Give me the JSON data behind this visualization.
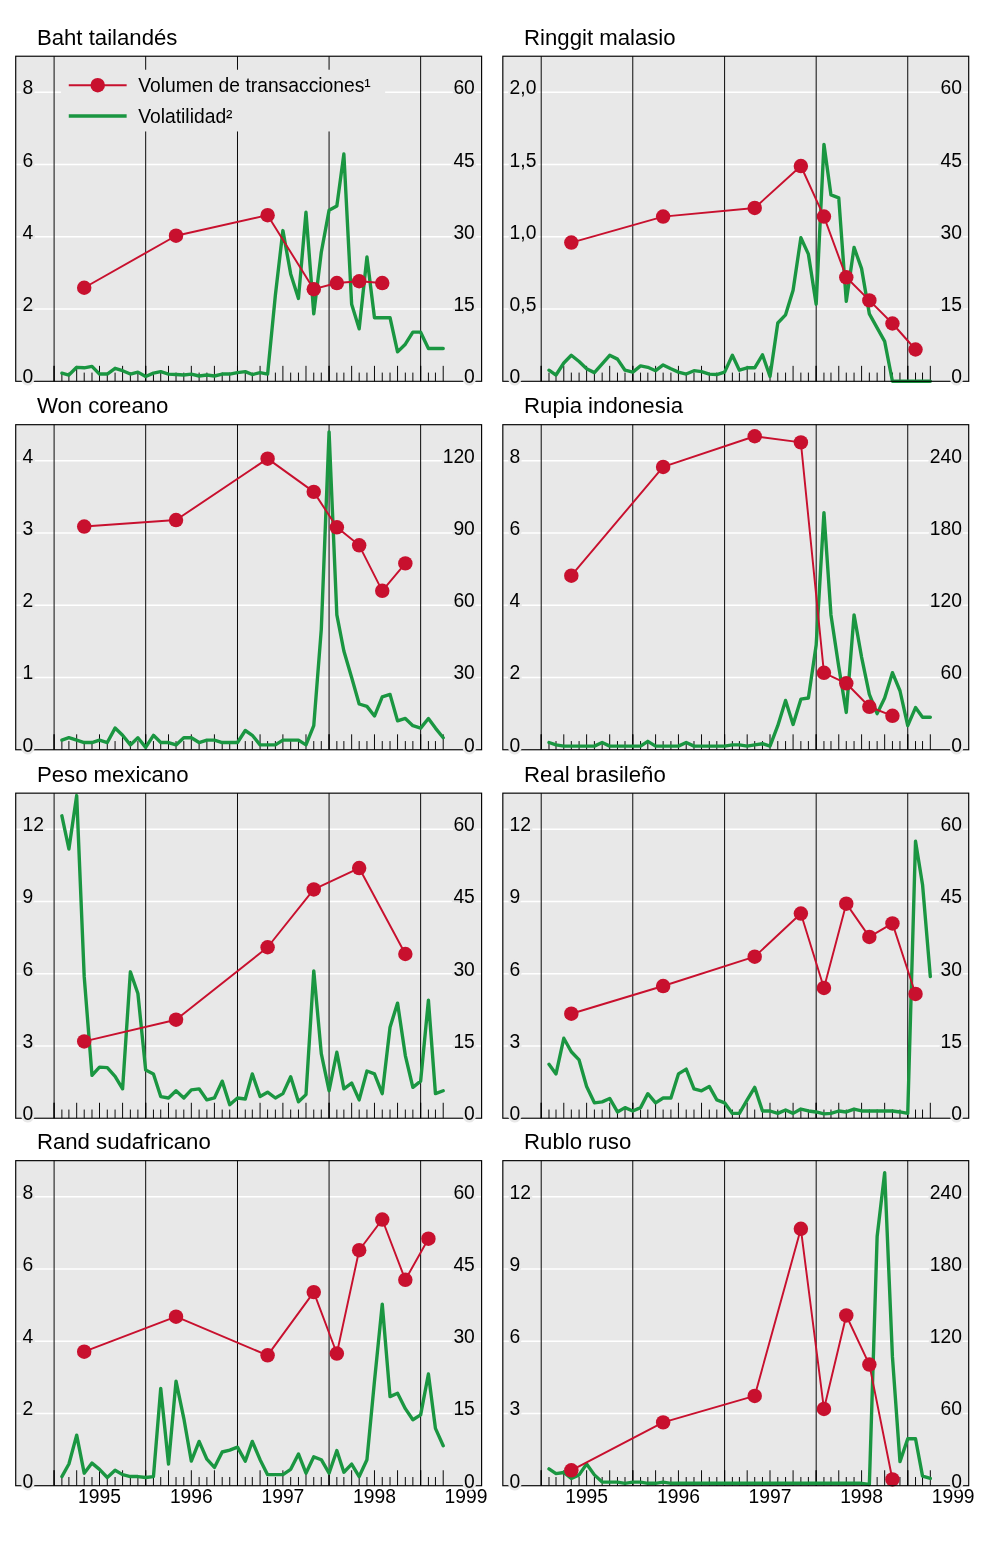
{
  "chart_data": [
    {
      "type": "line",
      "title": "Baht tailandés",
      "xlim": [
        "1994-08",
        "1999-09"
      ],
      "xticks": [
        {
          "value": "1995",
          "label": null
        },
        {
          "value": "1996",
          "label": null
        },
        {
          "value": "1997",
          "label": null
        },
        {
          "value": "1998",
          "label": null
        },
        {
          "value": "1999",
          "label": null
        }
      ],
      "tick_labels": "y",
      "ylim": [
        0,
        9
      ],
      "yticks": [
        0,
        2,
        4,
        6,
        8
      ],
      "y2lim": [
        0,
        67.5
      ],
      "y2ticks": [
        0,
        15,
        30,
        45,
        60
      ],
      "grid": "y",
      "legend": "top left",
      "ref_lines": [
        {
          "axis": "x",
          "value": "1995",
          "color": "#000000"
        },
        {
          "axis": "x",
          "value": "1996",
          "color": "#000000"
        },
        {
          "axis": "x",
          "value": "1997",
          "color": "#000000"
        },
        {
          "axis": "x",
          "value": "1998",
          "color": "#000000"
        },
        {
          "axis": "x",
          "value": "1999",
          "color": "#000000"
        }
      ],
      "series": [
        {
          "name": "Volumen de transacciones¹",
          "color": "#c8102e",
          "marker": "circle",
          "x": [
            "1995-05",
            "1996-05",
            "1997-05",
            "1997-11",
            "1998-02",
            "1998-05",
            "1998-08"
          ],
          "values": [
            2.59,
            4.03,
            4.6,
            2.55,
            2.72,
            2.77,
            2.72
          ]
        },
        {
          "name": "Volatilidad²",
          "color": "#1a9641",
          "marker": "none",
          "axis": "y2",
          "x": [
            "1995-02",
            "1995-03",
            "1995-04",
            "1995-05",
            "1995-06",
            "1995-07",
            "1995-08",
            "1995-09",
            "1995-10",
            "1995-11",
            "1995-12",
            "1996-01",
            "1996-02",
            "1996-03",
            "1996-04",
            "1996-05",
            "1996-06",
            "1996-07",
            "1996-08",
            "1996-09",
            "1996-10",
            "1996-11",
            "1996-12",
            "1997-01",
            "1997-02",
            "1997-03",
            "1997-04",
            "1997-05",
            "1997-06",
            "1997-07",
            "1997-08",
            "1997-09",
            "1997-10",
            "1997-11",
            "1997-12",
            "1998-01",
            "1998-02",
            "1998-03",
            "1998-04",
            "1998-05",
            "1998-06",
            "1998-07",
            "1998-08",
            "1998-09",
            "1998-10",
            "1998-11",
            "1998-12",
            "1999-01",
            "1999-02",
            "1999-03",
            "1999-04"
          ],
          "values": [
            1.7,
            1.3,
            2.9,
            2.8,
            3.1,
            1.5,
            1.5,
            2.7,
            2.2,
            1.5,
            1.9,
            1.0,
            1.7,
            2.0,
            1.5,
            1.4,
            1.3,
            1.5,
            1.1,
            1.3,
            1.1,
            1.5,
            1.5,
            1.8,
            2.0,
            1.4,
            1.8,
            1.5,
            17.9,
            31.3,
            22.3,
            17.2,
            35.1,
            14.0,
            26.8,
            35.5,
            36.4,
            47.2,
            16.0,
            10.9,
            25.8,
            13.2,
            13.2,
            13.2,
            6.1,
            7.7,
            10.2,
            10.2,
            6.8,
            6.8,
            6.8
          ]
        }
      ]
    },
    {
      "type": "line",
      "title": "Ringgit malasio",
      "xlim": [
        "1994-08",
        "1999-09"
      ],
      "xticks": [
        {
          "value": "1995",
          "label": null
        },
        {
          "value": "1996",
          "label": null
        },
        {
          "value": "1997",
          "label": null
        },
        {
          "value": "1998",
          "label": null
        },
        {
          "value": "1999",
          "label": null
        }
      ],
      "tick_labels": "y",
      "ylim": [
        0,
        2.25
      ],
      "yticks": [
        0,
        {
          "value": 0.5,
          "label": "0,5"
        },
        {
          "value": 1,
          "label": "1,0"
        },
        {
          "value": 1.5,
          "label": "1,5"
        },
        {
          "value": 2,
          "label": "2,0"
        }
      ],
      "y2lim": [
        0,
        67.5
      ],
      "y2ticks": [
        0,
        15,
        30,
        45,
        60
      ],
      "grid": "y",
      "ref_lines": [
        {
          "axis": "x",
          "value": "1995",
          "color": "#000000"
        },
        {
          "axis": "x",
          "value": "1996",
          "color": "#000000"
        },
        {
          "axis": "x",
          "value": "1997",
          "color": "#000000"
        },
        {
          "axis": "x",
          "value": "1998",
          "color": "#000000"
        },
        {
          "axis": "x",
          "value": "1999",
          "color": "#000000"
        }
      ],
      "series": [
        {
          "color": "#c8102e",
          "marker": "circle",
          "x": [
            "1995-05",
            "1996-05",
            "1997-05",
            "1997-11",
            "1998-02",
            "1998-05",
            "1998-08",
            "1998-11",
            "1999-02"
          ],
          "values": [
            0.96,
            1.14,
            1.2,
            1.49,
            1.14,
            0.72,
            0.56,
            0.4,
            0.22
          ]
        },
        {
          "color": "#1a9641",
          "marker": "none",
          "axis": "y2",
          "x": [
            "1995-02",
            "1995-03",
            "1995-04",
            "1995-05",
            "1995-06",
            "1995-07",
            "1995-08",
            "1995-09",
            "1995-10",
            "1995-11",
            "1995-12",
            "1996-01",
            "1996-02",
            "1996-03",
            "1996-04",
            "1996-05",
            "1996-06",
            "1996-07",
            "1996-08",
            "1996-09",
            "1996-10",
            "1996-11",
            "1996-12",
            "1997-01",
            "1997-02",
            "1997-03",
            "1997-04",
            "1997-05",
            "1997-06",
            "1997-07",
            "1997-08",
            "1997-09",
            "1997-10",
            "1997-11",
            "1997-12",
            "1998-01",
            "1998-02",
            "1998-03",
            "1998-04",
            "1998-05",
            "1998-06",
            "1998-07",
            "1998-08",
            "1998-09",
            "1998-10",
            "1998-11",
            "1998-12",
            "1999-01",
            "1999-02",
            "1999-03",
            "1999-04"
          ],
          "values": [
            2.3,
            1.3,
            3.8,
            5.4,
            4.1,
            2.6,
            1.8,
            3.6,
            5.4,
            4.6,
            2.3,
            1.9,
            3.2,
            2.9,
            2.2,
            3.4,
            2.6,
            1.9,
            1.5,
            2.2,
            2.0,
            1.5,
            1.4,
            1.9,
            5.4,
            2.3,
            2.8,
            2.8,
            5.5,
            1.0,
            12.1,
            13.8,
            18.9,
            29.8,
            26.4,
            16.0,
            49.2,
            38.7,
            38.1,
            16.6,
            27.8,
            23.4,
            14.0,
            11.1,
            8.3,
            0,
            0,
            0,
            0,
            0,
            0
          ]
        }
      ]
    },
    {
      "type": "line",
      "title": "Won coreano",
      "xlim": [
        "1994-08",
        "1999-09"
      ],
      "xticks": [
        {
          "value": "1995",
          "label": null
        },
        {
          "value": "1996",
          "label": null
        },
        {
          "value": "1997",
          "label": null
        },
        {
          "value": "1998",
          "label": null
        },
        {
          "value": "1999",
          "label": null
        }
      ],
      "tick_labels": "y",
      "ylim": [
        0,
        4.5
      ],
      "yticks": [
        0,
        1,
        2,
        3,
        4
      ],
      "y2lim": [
        0,
        135
      ],
      "y2ticks": [
        0,
        30,
        60,
        90,
        120
      ],
      "grid": "y",
      "ref_lines": [
        {
          "axis": "x",
          "value": "1995",
          "color": "#000000"
        },
        {
          "axis": "x",
          "value": "1996",
          "color": "#000000"
        },
        {
          "axis": "x",
          "value": "1997",
          "color": "#000000"
        },
        {
          "axis": "x",
          "value": "1998",
          "color": "#000000"
        },
        {
          "axis": "x",
          "value": "1999",
          "color": "#000000"
        }
      ],
      "series": [
        {
          "color": "#c8102e",
          "marker": "circle",
          "x": [
            "1995-05",
            "1996-05",
            "1997-05",
            "1997-11",
            "1998-02",
            "1998-05",
            "1998-08",
            "1998-11"
          ],
          "values": [
            3.09,
            3.18,
            4.03,
            3.57,
            3.08,
            2.83,
            2.2,
            2.58
          ]
        },
        {
          "color": "#1a9641",
          "marker": "none",
          "axis": "y2",
          "x": [
            "1995-02",
            "1995-03",
            "1995-04",
            "1995-05",
            "1995-06",
            "1995-07",
            "1995-08",
            "1995-09",
            "1995-10",
            "1995-11",
            "1995-12",
            "1996-01",
            "1996-02",
            "1996-03",
            "1996-04",
            "1996-05",
            "1996-06",
            "1996-07",
            "1996-08",
            "1996-09",
            "1996-10",
            "1996-11",
            "1996-12",
            "1997-01",
            "1997-02",
            "1997-03",
            "1997-04",
            "1997-05",
            "1997-06",
            "1997-07",
            "1997-08",
            "1997-09",
            "1997-10",
            "1997-11",
            "1997-12",
            "1998-01",
            "1998-02",
            "1998-03",
            "1998-04",
            "1998-05",
            "1998-06",
            "1998-07",
            "1998-08",
            "1998-09",
            "1998-10",
            "1998-11",
            "1998-12",
            "1999-01",
            "1999-02",
            "1999-03",
            "1999-04"
          ],
          "values": [
            4,
            5,
            4,
            3,
            3,
            4,
            3,
            9,
            6,
            2,
            5,
            1,
            6,
            3,
            3,
            2,
            5,
            5,
            3,
            4,
            4,
            3,
            3,
            3,
            8,
            6,
            2,
            2,
            2,
            4,
            4,
            4,
            2,
            10,
            50,
            132,
            56,
            41,
            30,
            19,
            18,
            14,
            22,
            23,
            12,
            13,
            10,
            9,
            13,
            9,
            5
          ]
        }
      ]
    },
    {
      "type": "line",
      "title": "Rupia indonesia",
      "xlim": [
        "1994-08",
        "1999-09"
      ],
      "xticks": [
        {
          "value": "1995",
          "label": null
        },
        {
          "value": "1996",
          "label": null
        },
        {
          "value": "1997",
          "label": null
        },
        {
          "value": "1998",
          "label": null
        },
        {
          "value": "1999",
          "label": null
        }
      ],
      "tick_labels": "y",
      "ylim": [
        0,
        9
      ],
      "yticks": [
        0,
        2,
        4,
        6,
        8
      ],
      "y2lim": [
        0,
        270
      ],
      "y2ticks": [
        0,
        60,
        120,
        180,
        240
      ],
      "grid": "y",
      "ref_lines": [
        {
          "axis": "x",
          "value": "1995",
          "color": "#000000"
        },
        {
          "axis": "x",
          "value": "1996",
          "color": "#000000"
        },
        {
          "axis": "x",
          "value": "1997",
          "color": "#000000"
        },
        {
          "axis": "x",
          "value": "1998",
          "color": "#000000"
        },
        {
          "axis": "x",
          "value": "1999",
          "color": "#000000"
        }
      ],
      "series": [
        {
          "color": "#c8102e",
          "marker": "circle",
          "x": [
            "1995-05",
            "1996-05",
            "1997-05",
            "1997-11",
            "1998-02",
            "1998-05",
            "1998-08",
            "1998-11"
          ],
          "values": [
            4.82,
            7.83,
            8.68,
            8.51,
            2.13,
            1.84,
            1.19,
            0.94
          ]
        },
        {
          "color": "#1a9641",
          "marker": "none",
          "axis": "y2",
          "x": [
            "1995-02",
            "1995-03",
            "1995-04",
            "1995-05",
            "1995-06",
            "1995-07",
            "1995-08",
            "1995-09",
            "1995-10",
            "1995-11",
            "1995-12",
            "1996-01",
            "1996-02",
            "1996-03",
            "1996-04",
            "1996-05",
            "1996-06",
            "1996-07",
            "1996-08",
            "1996-09",
            "1996-10",
            "1996-11",
            "1996-12",
            "1997-01",
            "1997-02",
            "1997-03",
            "1997-04",
            "1997-05",
            "1997-06",
            "1997-07",
            "1997-08",
            "1997-09",
            "1997-10",
            "1997-11",
            "1997-12",
            "1998-01",
            "1998-02",
            "1998-03",
            "1998-04",
            "1998-05",
            "1998-06",
            "1998-07",
            "1998-08",
            "1998-09",
            "1998-10",
            "1998-11",
            "1998-12",
            "1999-01",
            "1999-02",
            "1999-03",
            "1999-04"
          ],
          "values": [
            6,
            4,
            3,
            3,
            3,
            3,
            3,
            6,
            3,
            3,
            3,
            3,
            3,
            7,
            3,
            3,
            3,
            3,
            6,
            3,
            3,
            3,
            3,
            3,
            4,
            4,
            3,
            4,
            5,
            3,
            20,
            41,
            21,
            42,
            43,
            87,
            197,
            112,
            69,
            31,
            112,
            77,
            46,
            30,
            43,
            64,
            49,
            20,
            35,
            27,
            27
          ]
        }
      ]
    },
    {
      "type": "line",
      "title": "Peso mexicano",
      "xlim": [
        "1994-08",
        "1999-09"
      ],
      "xticks": [
        {
          "value": "1995",
          "label": null
        },
        {
          "value": "1996",
          "label": null
        },
        {
          "value": "1997",
          "label": null
        },
        {
          "value": "1998",
          "label": null
        },
        {
          "value": "1999",
          "label": null
        }
      ],
      "tick_labels": "y",
      "ylim": [
        0,
        13.5
      ],
      "yticks": [
        0,
        3,
        6,
        9,
        12
      ],
      "y2lim": [
        0,
        67.5
      ],
      "y2ticks": [
        0,
        15,
        30,
        45,
        60
      ],
      "grid": "y",
      "ref_lines": [
        {
          "axis": "x",
          "value": "1995",
          "color": "#000000"
        },
        {
          "axis": "x",
          "value": "1996",
          "color": "#000000"
        },
        {
          "axis": "x",
          "value": "1997",
          "color": "#000000"
        },
        {
          "axis": "x",
          "value": "1998",
          "color": "#000000"
        },
        {
          "axis": "x",
          "value": "1999",
          "color": "#000000"
        }
      ],
      "series": [
        {
          "color": "#c8102e",
          "marker": "circle",
          "x": [
            "1995-05",
            "1996-05",
            "1997-05",
            "1997-11",
            "1998-05",
            "1998-11"
          ],
          "values": [
            3.19,
            4.09,
            7.1,
            9.5,
            10.39,
            6.82
          ]
        },
        {
          "color": "#1a9641",
          "marker": "none",
          "axis": "y2",
          "x": [
            "1995-02",
            "1995-03",
            "1995-04",
            "1995-05",
            "1995-06",
            "1995-07",
            "1995-08",
            "1995-09",
            "1995-10",
            "1995-11",
            "1995-12",
            "1996-01",
            "1996-02",
            "1996-03",
            "1996-04",
            "1996-05",
            "1996-06",
            "1996-07",
            "1996-08",
            "1996-09",
            "1996-10",
            "1996-11",
            "1996-12",
            "1997-01",
            "1997-02",
            "1997-03",
            "1997-04",
            "1997-05",
            "1997-06",
            "1997-07",
            "1997-08",
            "1997-09",
            "1997-10",
            "1997-11",
            "1997-12",
            "1998-01",
            "1998-02",
            "1998-03",
            "1998-04",
            "1998-05",
            "1998-06",
            "1998-07",
            "1998-08",
            "1998-09",
            "1998-10",
            "1998-11",
            "1998-12",
            "1999-01",
            "1999-02",
            "1999-03",
            "1999-04"
          ],
          "values": [
            62.8,
            55.9,
            67,
            29.4,
            8.9,
            10.6,
            10.5,
            8.7,
            6.1,
            30.4,
            25.9,
            10.0,
            9.2,
            4.5,
            4.2,
            5.7,
            4.2,
            5.9,
            6.1,
            3.8,
            4.2,
            7.7,
            2.8,
            4.2,
            4.0,
            9.2,
            4.5,
            5.4,
            4.2,
            5.1,
            8.6,
            3.4,
            4.9,
            30.6,
            13.4,
            5.7,
            13.7,
            6.1,
            7.3,
            3.8,
            9.8,
            9.2,
            5.1,
            18.9,
            23.9,
            13.0,
            6.4,
            7.7,
            24.5,
            5.1,
            5.7
          ]
        }
      ]
    },
    {
      "type": "line",
      "title": "Real brasileño",
      "xlim": [
        "1994-08",
        "1999-09"
      ],
      "xticks": [
        {
          "value": "1995",
          "label": null
        },
        {
          "value": "1996",
          "label": null
        },
        {
          "value": "1997",
          "label": null
        },
        {
          "value": "1998",
          "label": null
        },
        {
          "value": "1999",
          "label": null
        }
      ],
      "tick_labels": "y",
      "ylim": [
        0,
        13.5
      ],
      "yticks": [
        0,
        3,
        6,
        9,
        12
      ],
      "y2lim": [
        0,
        67.5
      ],
      "y2ticks": [
        0,
        15,
        30,
        45,
        60
      ],
      "grid": "y",
      "ref_lines": [
        {
          "axis": "x",
          "value": "1995",
          "color": "#000000"
        },
        {
          "axis": "x",
          "value": "1996",
          "color": "#000000"
        },
        {
          "axis": "x",
          "value": "1997",
          "color": "#000000"
        },
        {
          "axis": "x",
          "value": "1998",
          "color": "#000000"
        },
        {
          "axis": "x",
          "value": "1999",
          "color": "#000000"
        }
      ],
      "series": [
        {
          "color": "#c8102e",
          "marker": "circle",
          "x": [
            "1995-05",
            "1996-05",
            "1997-05",
            "1997-11",
            "1998-02",
            "1998-05",
            "1998-08",
            "1998-11",
            "1999-02"
          ],
          "values": [
            4.34,
            5.49,
            6.71,
            8.5,
            5.41,
            8.91,
            7.53,
            8.09,
            5.16
          ]
        },
        {
          "color": "#1a9641",
          "marker": "none",
          "axis": "y2",
          "x": [
            "1995-02",
            "1995-03",
            "1995-04",
            "1995-05",
            "1995-06",
            "1995-07",
            "1995-08",
            "1995-09",
            "1995-10",
            "1995-11",
            "1995-12",
            "1996-01",
            "1996-02",
            "1996-03",
            "1996-04",
            "1996-05",
            "1996-06",
            "1996-07",
            "1996-08",
            "1996-09",
            "1996-10",
            "1996-11",
            "1996-12",
            "1997-01",
            "1997-02",
            "1997-03",
            "1997-04",
            "1997-05",
            "1997-06",
            "1997-07",
            "1997-08",
            "1997-09",
            "1997-10",
            "1997-11",
            "1997-12",
            "1998-01",
            "1998-02",
            "1998-03",
            "1998-04",
            "1998-05",
            "1998-06",
            "1998-07",
            "1998-08",
            "1998-09",
            "1998-10",
            "1998-11",
            "1998-12",
            "1999-01",
            "1999-02",
            "1999-03",
            "1999-04"
          ],
          "values": [
            11.2,
            9.2,
            16.6,
            13.8,
            12.1,
            6.6,
            3.2,
            3.4,
            4.1,
            1.3,
            2.2,
            1.5,
            2.2,
            5.1,
            3.2,
            4.2,
            4.2,
            9.2,
            10.2,
            6.1,
            5.7,
            6.6,
            3.8,
            3.2,
            1.0,
            1.0,
            3.8,
            6.4,
            1.5,
            1.5,
            1.0,
            1.7,
            1.0,
            1.9,
            1.5,
            1.3,
            0.9,
            1.0,
            1.5,
            1.3,
            1.9,
            1.5,
            1.5,
            1.5,
            1.5,
            1.5,
            1.3,
            1.0,
            57.5,
            48.5,
            29.4
          ]
        }
      ]
    },
    {
      "type": "line",
      "title": "Rand sudafricano",
      "xlim": [
        "1994-08",
        "1999-09"
      ],
      "xticks": [
        {
          "value": "1995",
          "label": null
        },
        {
          "value": "1996",
          "label": null
        },
        {
          "value": "1997",
          "label": null
        },
        {
          "value": "1998",
          "label": null
        },
        {
          "value": "1999",
          "label": null
        },
        {
          "value": "1995-07",
          "label": "1995"
        },
        {
          "value": "1996-07",
          "label": "1996"
        },
        {
          "value": "1997-07",
          "label": "1997"
        },
        {
          "value": "1998-07",
          "label": "1998"
        },
        {
          "value": "1999-07",
          "label": "1999"
        }
      ],
      "ylim": [
        0,
        9
      ],
      "yticks": [
        0,
        2,
        4,
        6,
        8
      ],
      "y2lim": [
        0,
        67.5
      ],
      "y2ticks": [
        0,
        15,
        30,
        45,
        60
      ],
      "grid": "y",
      "ref_lines": [
        {
          "axis": "x",
          "value": "1995",
          "color": "#000000"
        },
        {
          "axis": "x",
          "value": "1996",
          "color": "#000000"
        },
        {
          "axis": "x",
          "value": "1997",
          "color": "#000000"
        },
        {
          "axis": "x",
          "value": "1998",
          "color": "#000000"
        },
        {
          "axis": "x",
          "value": "1999",
          "color": "#000000"
        }
      ],
      "series": [
        {
          "color": "#c8102e",
          "marker": "circle",
          "x": [
            "1995-05",
            "1996-05",
            "1997-05",
            "1997-11",
            "1998-02",
            "1998-05",
            "1998-08",
            "1998-11",
            "1999-02"
          ],
          "values": [
            3.71,
            4.68,
            3.61,
            5.36,
            3.66,
            6.52,
            7.37,
            5.7,
            6.84
          ]
        },
        {
          "color": "#1a9641",
          "marker": "none",
          "axis": "y2",
          "x": [
            "1995-02",
            "1995-03",
            "1995-04",
            "1995-05",
            "1995-06",
            "1995-07",
            "1995-08",
            "1995-09",
            "1995-10",
            "1995-11",
            "1995-12",
            "1996-01",
            "1996-02",
            "1996-03",
            "1996-04",
            "1996-05",
            "1996-06",
            "1996-07",
            "1996-08",
            "1996-09",
            "1996-10",
            "1996-11",
            "1996-12",
            "1997-01",
            "1997-02",
            "1997-03",
            "1997-04",
            "1997-05",
            "1997-06",
            "1997-07",
            "1997-08",
            "1997-09",
            "1997-10",
            "1997-11",
            "1997-12",
            "1998-01",
            "1998-02",
            "1998-03",
            "1998-04",
            "1998-05",
            "1998-06",
            "1998-07",
            "1998-08",
            "1998-09",
            "1998-10",
            "1998-11",
            "1998-12",
            "1999-01",
            "1999-02",
            "1999-03",
            "1999-04"
          ],
          "values": [
            1.9,
            4.5,
            10.5,
            2.6,
            4.7,
            3.4,
            1.7,
            3.2,
            2.3,
            1.9,
            1.9,
            1.7,
            1.9,
            20.2,
            4.5,
            21.7,
            14.0,
            5.1,
            9.2,
            5.5,
            3.8,
            7.0,
            7.4,
            8.0,
            5.1,
            9.2,
            5.4,
            2.3,
            2.3,
            2.3,
            3.4,
            6.6,
            2.6,
            6.0,
            5.4,
            2.6,
            7.3,
            2.8,
            4.5,
            1.9,
            5.4,
            21.7,
            37.7,
            18.5,
            19.2,
            16.0,
            13.7,
            14.7,
            23.2,
            11.9,
            8.3
          ]
        }
      ]
    },
    {
      "type": "line",
      "title": "Rublo ruso",
      "xlim": [
        "1994-08",
        "1999-09"
      ],
      "xticks": [
        {
          "value": "1995",
          "label": null
        },
        {
          "value": "1996",
          "label": null
        },
        {
          "value": "1997",
          "label": null
        },
        {
          "value": "1998",
          "label": null
        },
        {
          "value": "1999",
          "label": null
        },
        {
          "value": "1995-07",
          "label": "1995"
        },
        {
          "value": "1996-07",
          "label": "1996"
        },
        {
          "value": "1997-07",
          "label": "1997"
        },
        {
          "value": "1998-07",
          "label": "1998"
        },
        {
          "value": "1999-07",
          "label": "1999"
        }
      ],
      "ylim": [
        0,
        13.5
      ],
      "yticks": [
        0,
        3,
        6,
        9,
        12
      ],
      "y2lim": [
        0,
        270
      ],
      "y2ticks": [
        0,
        60,
        120,
        180,
        240
      ],
      "grid": "y",
      "ref_lines": [
        {
          "axis": "x",
          "value": "1995",
          "color": "#000000"
        },
        {
          "axis": "x",
          "value": "1996",
          "color": "#000000"
        },
        {
          "axis": "x",
          "value": "1997",
          "color": "#000000"
        },
        {
          "axis": "x",
          "value": "1998",
          "color": "#000000"
        },
        {
          "axis": "x",
          "value": "1999",
          "color": "#000000"
        }
      ],
      "series": [
        {
          "color": "#c8102e",
          "marker": "circle",
          "x": [
            "1995-05",
            "1996-05",
            "1997-05",
            "1997-11",
            "1998-02",
            "1998-05",
            "1998-08",
            "1998-11"
          ],
          "values": [
            0.64,
            2.63,
            3.73,
            10.67,
            3.19,
            7.07,
            5.03,
            0.26
          ]
        },
        {
          "color": "#1a9641",
          "marker": "none",
          "axis": "y2",
          "x": [
            "1995-02",
            "1995-03",
            "1995-04",
            "1995-05",
            "1995-06",
            "1995-07",
            "1995-08",
            "1995-09",
            "1995-10",
            "1995-11",
            "1995-12",
            "1996-01",
            "1996-02",
            "1996-03",
            "1996-04",
            "1996-05",
            "1996-06",
            "1996-07",
            "1996-08",
            "1996-09",
            "1996-10",
            "1996-11",
            "1996-12",
            "1997-01",
            "1997-02",
            "1997-03",
            "1997-04",
            "1997-05",
            "1997-06",
            "1997-07",
            "1997-08",
            "1997-09",
            "1997-10",
            "1997-11",
            "1997-12",
            "1998-01",
            "1998-02",
            "1998-03",
            "1998-04",
            "1998-05",
            "1998-06",
            "1998-07",
            "1998-08",
            "1998-09",
            "1998-10",
            "1998-11",
            "1998-12",
            "1999-01",
            "1999-02",
            "1999-03",
            "1999-04"
          ],
          "values": [
            14,
            10,
            11,
            6,
            9,
            18,
            9,
            3,
            3,
            3,
            2,
            3,
            3,
            2,
            2,
            3,
            2,
            2,
            2,
            2,
            2,
            2,
            2,
            2,
            2,
            2,
            2,
            2,
            2,
            2,
            2,
            2,
            2,
            2,
            2,
            2,
            2,
            2,
            2,
            2,
            2,
            2,
            1,
            207,
            260,
            107,
            20,
            39,
            39,
            8,
            6
          ]
        }
      ]
    }
  ]
}
